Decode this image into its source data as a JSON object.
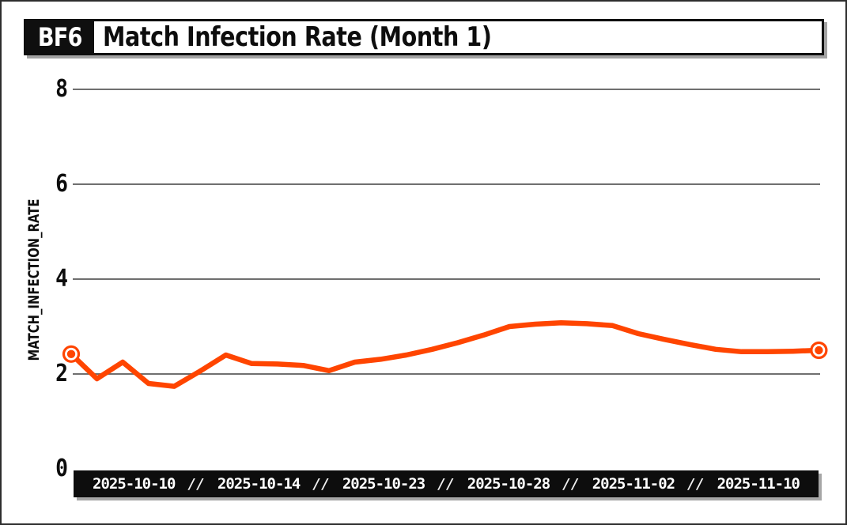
{
  "header": {
    "badge": "BF6",
    "title": "Match Infection Rate (Month 1)"
  },
  "y_axis": {
    "label": "MATCH_INFECTION_RATE",
    "ticks": [
      8,
      6,
      4,
      2,
      0
    ]
  },
  "x_axis": {
    "labels": [
      "2025-10-10",
      "2025-10-14",
      "2025-10-23",
      "2025-10-28",
      "2025-11-02",
      "2025-11-10"
    ],
    "separator": "//"
  },
  "colors": {
    "line": "#FF4500",
    "grid": "#6f6f6f",
    "bar_background": "#0d0d0d",
    "bar_text": "#ffffff",
    "shadow": "#a6a6a6",
    "text": "#0d0d0d"
  },
  "chart_data": {
    "type": "line",
    "title": "Match Infection Rate (Month 1)",
    "ylabel": "MATCH_INFECTION_RATE",
    "ylim": [
      0,
      8
    ],
    "yticks": [
      0,
      2,
      4,
      6,
      8
    ],
    "xticklabels": [
      "2025-10-10",
      "2025-10-14",
      "2025-10-23",
      "2025-10-28",
      "2025-11-02",
      "2025-11-10"
    ],
    "grid": "horizontal gridlines only",
    "legend": "none",
    "marker_style": "ring markers on first and last points only",
    "series": [
      {
        "name": "match_infection_rate",
        "values": [
          2.42,
          1.9,
          2.25,
          1.8,
          1.74,
          2.06,
          2.4,
          2.22,
          2.21,
          2.18,
          2.07,
          2.25,
          2.31,
          2.4,
          2.52,
          2.66,
          2.82,
          3.0,
          3.05,
          3.08,
          3.06,
          3.02,
          2.85,
          2.73,
          2.62,
          2.52,
          2.47,
          2.47,
          2.48,
          2.5
        ]
      }
    ]
  }
}
